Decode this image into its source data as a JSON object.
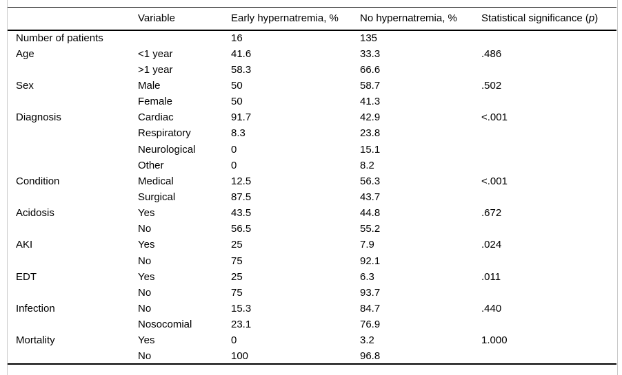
{
  "table": {
    "columns": [
      {
        "label": ""
      },
      {
        "label": "Variable"
      },
      {
        "label": "Early hypernatremia, %"
      },
      {
        "label": "No hypernatremia, %"
      },
      {
        "label": "Statistical significance (",
        "italic": "p",
        "suffix": ")"
      }
    ],
    "rows": [
      {
        "category": "Number of patients",
        "variable": "",
        "early": "16",
        "no": "135",
        "p": ""
      },
      {
        "category": "Age",
        "variable": "<1 year",
        "early": "41.6",
        "no": "33.3",
        "p": ".486"
      },
      {
        "category": "",
        "variable": ">1 year",
        "early": "58.3",
        "no": "66.6",
        "p": ""
      },
      {
        "category": "Sex",
        "variable": "Male",
        "early": "50",
        "no": "58.7",
        "p": ".502"
      },
      {
        "category": "",
        "variable": "Female",
        "early": "50",
        "no": "41.3",
        "p": ""
      },
      {
        "category": "Diagnosis",
        "variable": "Cardiac",
        "early": "91.7",
        "no": "42.9",
        "p": "<.001"
      },
      {
        "category": "",
        "variable": "Respiratory",
        "early": "8.3",
        "no": "23.8",
        "p": ""
      },
      {
        "category": "",
        "variable": "Neurological",
        "early": "0",
        "no": "15.1",
        "p": ""
      },
      {
        "category": "",
        "variable": "Other",
        "early": "0",
        "no": "8.2",
        "p": ""
      },
      {
        "category": "Condition",
        "variable": "Medical",
        "early": "12.5",
        "no": "56.3",
        "p": "<.001"
      },
      {
        "category": "",
        "variable": "Surgical",
        "early": "87.5",
        "no": "43.7",
        "p": ""
      },
      {
        "category": "Acidosis",
        "variable": "Yes",
        "early": "43.5",
        "no": "44.8",
        "p": ".672"
      },
      {
        "category": "",
        "variable": "No",
        "early": "56.5",
        "no": "55.2",
        "p": ""
      },
      {
        "category": "AKI",
        "variable": "Yes",
        "early": "25",
        "no": "7.9",
        "p": ".024"
      },
      {
        "category": "",
        "variable": "No",
        "early": "75",
        "no": "92.1",
        "p": ""
      },
      {
        "category": "EDT",
        "variable": "Yes",
        "early": "25",
        "no": "6.3",
        "p": ".011"
      },
      {
        "category": "",
        "variable": "No",
        "early": "75",
        "no": "93.7",
        "p": ""
      },
      {
        "category": "Infection",
        "variable": "No",
        "early": "15.3",
        "no": "84.7",
        "p": ".440"
      },
      {
        "category": "",
        "variable": "Nosocomial",
        "early": "23.1",
        "no": "76.9",
        "p": ""
      },
      {
        "category": "Mortality",
        "variable": "Yes",
        "early": "0",
        "no": "3.2",
        "p": "1.000"
      },
      {
        "category": "",
        "variable": "No",
        "early": "100",
        "no": "96.8",
        "p": ""
      }
    ]
  }
}
